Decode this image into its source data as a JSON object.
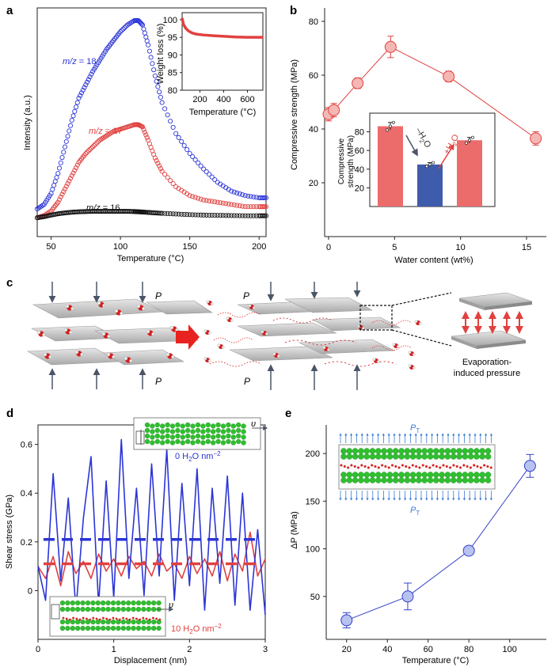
{
  "panels": {
    "a": {
      "label": "a"
    },
    "b": {
      "label": "b"
    },
    "c": {
      "label": "c"
    },
    "d": {
      "label": "d"
    },
    "e": {
      "label": "e"
    }
  },
  "colors": {
    "blue": "#2b35d6",
    "red": "#e0413f",
    "black": "#111111",
    "pinkFill": "#f5b7b4",
    "barRed": "#ec6c6b",
    "barBlue": "#3f5bab",
    "eBlue": "#3341c7",
    "eFill": "#b8c2f0",
    "arrowGray": "#4a5567",
    "sheet": "#c9c9c9"
  },
  "chart_data": [
    {
      "id": "a",
      "type": "scatter",
      "xlabel": "Temperature (°C)",
      "ylabel": "Intensity (a.u.)",
      "xlim": [
        40,
        205
      ],
      "xticks": [
        50,
        100,
        150,
        200
      ],
      "series": [
        {
          "name": "m/z = 18",
          "label": "m/z = 18",
          "color": "#2b35d6",
          "x": [
            40,
            45,
            50,
            55,
            60,
            65,
            70,
            75,
            80,
            85,
            90,
            95,
            100,
            105,
            110,
            113,
            116,
            120,
            125,
            130,
            140,
            150,
            160,
            170,
            180,
            190,
            200,
            205
          ],
          "y": [
            0.1,
            0.12,
            0.17,
            0.26,
            0.38,
            0.5,
            0.6,
            0.66,
            0.72,
            0.77,
            0.82,
            0.86,
            0.9,
            0.93,
            0.95,
            0.95,
            0.93,
            0.84,
            0.7,
            0.58,
            0.44,
            0.35,
            0.28,
            0.22,
            0.18,
            0.16,
            0.15,
            0.15
          ]
        },
        {
          "name": "m/z = 17",
          "label": "m/z = 17",
          "color": "#e0413f",
          "x": [
            40,
            45,
            50,
            55,
            60,
            65,
            70,
            75,
            80,
            85,
            90,
            95,
            100,
            105,
            110,
            113,
            116,
            120,
            125,
            130,
            140,
            150,
            160,
            170,
            180,
            190,
            200,
            205
          ],
          "y": [
            0.06,
            0.07,
            0.09,
            0.13,
            0.19,
            0.25,
            0.31,
            0.35,
            0.38,
            0.41,
            0.43,
            0.45,
            0.46,
            0.47,
            0.48,
            0.48,
            0.47,
            0.41,
            0.33,
            0.27,
            0.2,
            0.16,
            0.14,
            0.13,
            0.12,
            0.11,
            0.11,
            0.11
          ]
        },
        {
          "name": "m/z = 16",
          "label": "m/z = 16",
          "color": "#111111",
          "x": [
            40,
            45,
            50,
            55,
            60,
            65,
            70,
            75,
            80,
            85,
            90,
            95,
            100,
            105,
            110,
            113,
            116,
            120,
            125,
            130,
            140,
            150,
            160,
            170,
            180,
            190,
            200,
            205
          ],
          "y": [
            0.06,
            0.065,
            0.072,
            0.078,
            0.082,
            0.085,
            0.087,
            0.088,
            0.089,
            0.089,
            0.089,
            0.089,
            0.089,
            0.089,
            0.088,
            0.087,
            0.086,
            0.084,
            0.082,
            0.08,
            0.077,
            0.074,
            0.072,
            0.071,
            0.07,
            0.069,
            0.069,
            0.069
          ]
        }
      ],
      "inset": {
        "type": "line",
        "xlabel": "Temperature (°C)",
        "ylabel": "Weight loss (%)",
        "xlim": [
          50,
          730
        ],
        "ylim": [
          80,
          102
        ],
        "xticks": [
          200,
          400,
          600
        ],
        "yticks": [
          80,
          85,
          90,
          95,
          100
        ],
        "x": [
          50,
          60,
          80,
          100,
          130,
          170,
          220,
          300,
          400,
          500,
          600,
          700,
          730
        ],
        "y": [
          100.5,
          98.8,
          97.6,
          96.9,
          96.3,
          95.9,
          95.7,
          95.5,
          95.3,
          95.1,
          95.0,
          95.0,
          95.0
        ]
      }
    },
    {
      "id": "b",
      "type": "line",
      "xlabel": "Water content (wt%)",
      "ylabel": "Compressive strength (MPa)",
      "xlim": [
        -0.3,
        16.5
      ],
      "ylim": [
        0,
        85
      ],
      "xticks": [
        0,
        5,
        10,
        15
      ],
      "yticks": [
        20,
        40,
        60,
        80
      ],
      "x": [
        0,
        0.4,
        2.2,
        4.7,
        9.1,
        15.7
      ],
      "y": [
        45.5,
        47,
        57,
        70.5,
        59.5,
        36.5
      ],
      "err": [
        2.5,
        2.5,
        2,
        4,
        2,
        2.5
      ],
      "inset": {
        "type": "bar",
        "ylabel": "Compressive strength (MPa)",
        "ylim": [
          0,
          100
        ],
        "yticks": [
          20,
          40,
          60,
          80
        ],
        "values": [
          86,
          45,
          71
        ],
        "err": [
          4,
          2,
          3
        ],
        "dots": [
          [
            82,
            86,
            90
          ],
          [
            43,
            45,
            47
          ],
          [
            68,
            71,
            74
          ]
        ],
        "annotations": {
          "minus": "–H2O",
          "plus": "+H2O"
        }
      }
    },
    {
      "id": "d",
      "type": "line",
      "xlabel": "Displacement (nm)",
      "ylabel": "Shear stress (GPa)",
      "xlim": [
        0,
        3
      ],
      "ylim": [
        -0.2,
        0.68
      ],
      "xticks": [
        0,
        1,
        2,
        3
      ],
      "yticks": [
        0,
        0.2,
        0.4,
        0.6
      ],
      "series": [
        {
          "name": "0 H2O nm−2",
          "color": "#2b35d6",
          "mean": 0.21,
          "x": [
            0.0,
            0.1,
            0.2,
            0.3,
            0.4,
            0.5,
            0.6,
            0.7,
            0.8,
            0.9,
            1.0,
            1.1,
            1.2,
            1.3,
            1.4,
            1.5,
            1.6,
            1.7,
            1.8,
            1.9,
            2.0,
            2.1,
            2.2,
            2.3,
            2.4,
            2.5,
            2.6,
            2.7,
            2.8,
            2.9,
            3.0
          ],
          "y": [
            0.1,
            -0.04,
            0.48,
            0.04,
            0.38,
            -0.08,
            0.3,
            0.55,
            -0.06,
            0.45,
            -0.03,
            0.62,
            0.05,
            0.42,
            -0.02,
            0.52,
            0.06,
            0.58,
            -0.04,
            0.44,
            0.02,
            0.5,
            -0.08,
            0.42,
            0.03,
            0.47,
            -0.06,
            0.4,
            -0.08,
            0.25,
            -0.1
          ]
        },
        {
          "name": "10 H2O nm−2",
          "color": "#e0413f",
          "mean": 0.11,
          "x": [
            0.0,
            0.1,
            0.2,
            0.3,
            0.4,
            0.5,
            0.6,
            0.7,
            0.8,
            0.9,
            1.0,
            1.1,
            1.2,
            1.3,
            1.4,
            1.5,
            1.6,
            1.7,
            1.8,
            1.9,
            2.0,
            2.1,
            2.2,
            2.3,
            2.4,
            2.5,
            2.6,
            2.7,
            2.8,
            2.9,
            3.0
          ],
          "y": [
            0.1,
            0.05,
            0.14,
            0.02,
            0.16,
            0.07,
            0.12,
            0.05,
            0.15,
            0.08,
            0.13,
            0.06,
            0.14,
            0.09,
            0.12,
            0.06,
            0.15,
            0.08,
            0.11,
            0.05,
            0.14,
            0.07,
            0.13,
            0.06,
            0.16,
            0.04,
            0.15,
            0.08,
            0.24,
            0.06,
            0.13
          ]
        }
      ],
      "labels": {
        "top": "0 H2O nm−2",
        "bottom": "10 H2O nm−2",
        "v": "υ"
      }
    },
    {
      "id": "e",
      "type": "line",
      "xlabel": "Temperature (°C)",
      "ylabel": "ΔP (MPa)",
      "xlim": [
        10,
        118
      ],
      "ylim": [
        5,
        230
      ],
      "xticks": [
        20,
        40,
        60,
        80,
        100
      ],
      "yticks": [
        50,
        100,
        150,
        200
      ],
      "x": [
        20,
        50,
        80,
        110
      ],
      "y": [
        25,
        50,
        98,
        187
      ],
      "err": [
        8,
        14,
        3,
        12
      ],
      "labels": {
        "pt": "P",
        "sub": "T"
      }
    }
  ],
  "panel_c": {
    "p_label": "P",
    "caption_line1": "Evaporation-",
    "caption_line2": "induced pressure"
  }
}
